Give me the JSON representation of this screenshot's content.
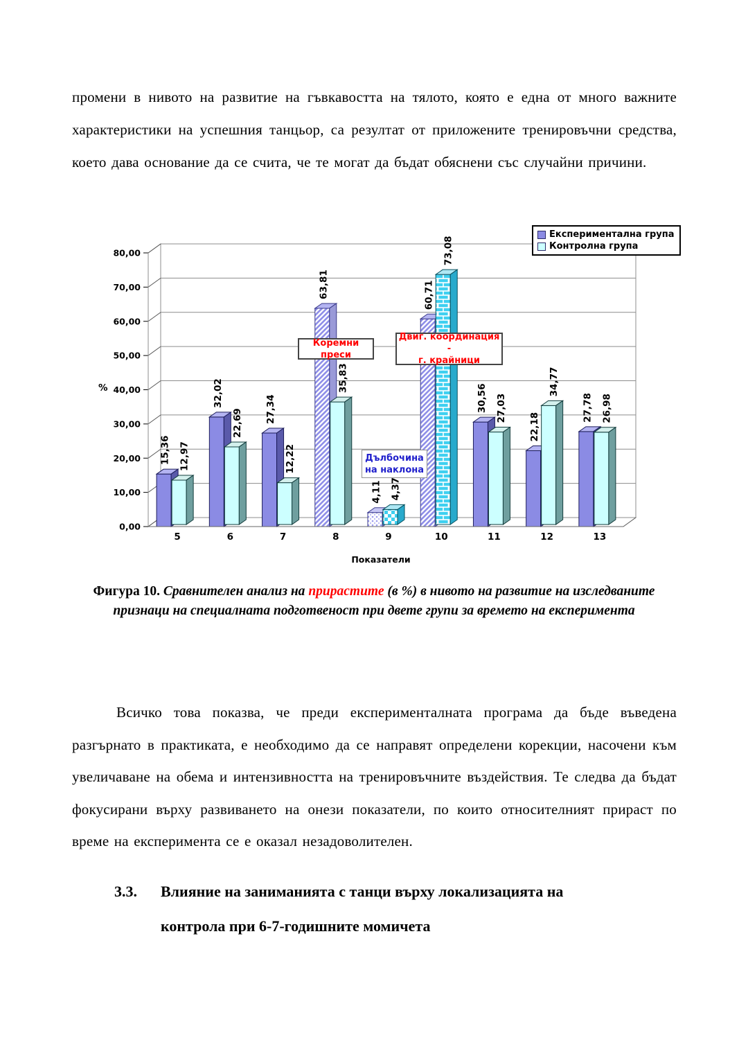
{
  "document": {
    "paragraph1": "промени в нивото на развитие на гъвкавостта на тялото, която е една от много важните характеристики на успешния танцьор, са резултат от приложените тренировъчни средства, което дава основание да се счита, че те могат да бъдат обяснени със случайни причини.",
    "paragraph2": "Всичко това показва, че преди експерименталната програма да бъде въведена разгърнато в практиката, е необходимо да се направят определени корекции, насочени към увеличаване на обема и интензивността на тренировъчните въздействия. Те следва да бъдат фокусирани върху развиването на онези показатели, по които относителният прираст по време на експеримента се е оказал незадоволителен.",
    "section_heading": {
      "number": "3.3.",
      "text": "Влияние на заниманията с танци върху локализацията на контрола при 6-7-годишните момичета"
    }
  },
  "figure": {
    "caption_prefix": "Фигура 10. ",
    "caption_italic_1": "Сравнителен анализ на ",
    "caption_red": "прирастите",
    "caption_italic_2": " (в %) в нивото на развитие на изследваните признаци на специалната подготвеност при двете групи за времето на експеримента",
    "red_color": "#ff0000"
  },
  "chart_data": {
    "type": "bar",
    "title": "",
    "xlabel": "Показатели",
    "ylabel": "%",
    "ylim": [
      0,
      80
    ],
    "ytick_step": 10,
    "ytick_labels": [
      "0,00",
      "10,00",
      "20,00",
      "30,00",
      "40,00",
      "50,00",
      "60,00",
      "70,00",
      "80,00"
    ],
    "categories": [
      "5",
      "6",
      "7",
      "8",
      "9",
      "10",
      "11",
      "12",
      "13"
    ],
    "series": [
      {
        "name": "Експериментална група",
        "values": [
          15.36,
          32.02,
          27.34,
          63.81,
          4.11,
          60.71,
          30.56,
          22.18,
          27.78
        ],
        "labels": [
          "15,36",
          "32,02",
          "27,34",
          "63,81",
          "4,11",
          "60,71",
          "30,56",
          "22,18",
          "27,78"
        ],
        "color": "#8b8be4"
      },
      {
        "name": "Контролна група",
        "values": [
          12.97,
          22.69,
          12.22,
          35.83,
          4.37,
          73.08,
          27.03,
          34.77,
          26.98
        ],
        "labels": [
          "12,97",
          "22,69",
          "12,22",
          "35,83",
          "4,37",
          "73,08",
          "27,03",
          "34,77",
          "26,98"
        ],
        "color": "#ccffff"
      }
    ],
    "patterns": {
      "3": [
        "hatch",
        "solid"
      ],
      "4": [
        "dots",
        "checker"
      ],
      "5": [
        "hatch",
        "brick"
      ]
    },
    "annotations": [
      {
        "lines": [
          "Коремни преси"
        ],
        "color": "#ff0000"
      },
      {
        "lines": [
          "Двиг. координация -",
          "г. крайници"
        ],
        "color": "#ff0000"
      },
      {
        "lines": [
          "Дълбочина",
          "на наклона"
        ],
        "color": "#2020cc"
      }
    ],
    "legend_position": "top-right",
    "grid": true
  }
}
